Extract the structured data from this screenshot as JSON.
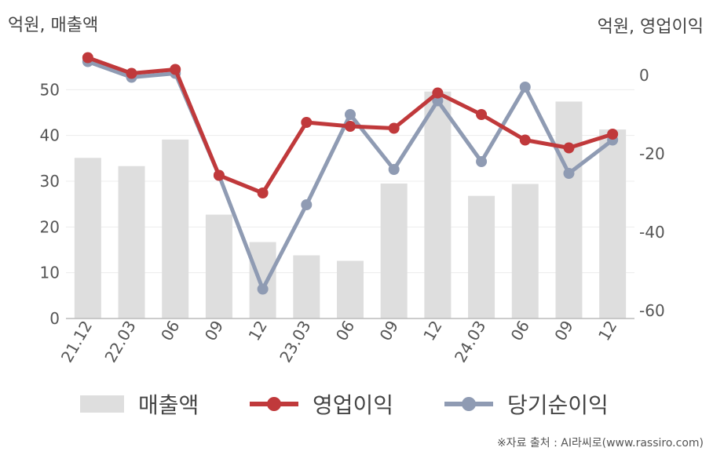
{
  "units": {
    "left": "억원, 매출액",
    "right": "억원, 영업이익"
  },
  "source": "※자료 출처 : AI라씨로(www.rassiro.com)",
  "chart_data": {
    "type": "bar",
    "categories": [
      "21.12",
      "22.03",
      "06",
      "09",
      "12",
      "23.03",
      "06",
      "09",
      "12",
      "24.03",
      "06",
      "09",
      "12"
    ],
    "series": [
      {
        "name": "매출액",
        "type": "bar",
        "axis": "left",
        "color": "#dedede",
        "values": [
          35.1,
          33.3,
          39.1,
          22.7,
          16.7,
          13.8,
          12.6,
          29.5,
          49.6,
          26.8,
          29.4,
          47.4,
          41.3
        ]
      },
      {
        "name": "영업이익",
        "type": "line",
        "axis": "right",
        "color": "#c0393b",
        "values": [
          4.5,
          0.5,
          1.5,
          -25.5,
          -30.0,
          -12.0,
          -13.0,
          -13.5,
          -4.5,
          -10.0,
          -16.5,
          -18.5,
          -15.0
        ]
      },
      {
        "name": "당기순이익",
        "type": "line",
        "axis": "right",
        "color": "#8f9bb3",
        "values": [
          3.5,
          -0.5,
          0.5,
          -25.5,
          -54.5,
          -33.0,
          -10.0,
          -24.0,
          -6.5,
          -22.0,
          -3.0,
          -25.0,
          -16.5
        ]
      }
    ],
    "left_axis": {
      "min": 0,
      "max": 60,
      "ticks": [
        0,
        10,
        20,
        30,
        40,
        50
      ]
    },
    "right_axis": {
      "min": -62,
      "max": 8,
      "ticks": [
        0,
        -20,
        -40,
        -60
      ]
    },
    "grid": true,
    "legend": "bottom"
  }
}
